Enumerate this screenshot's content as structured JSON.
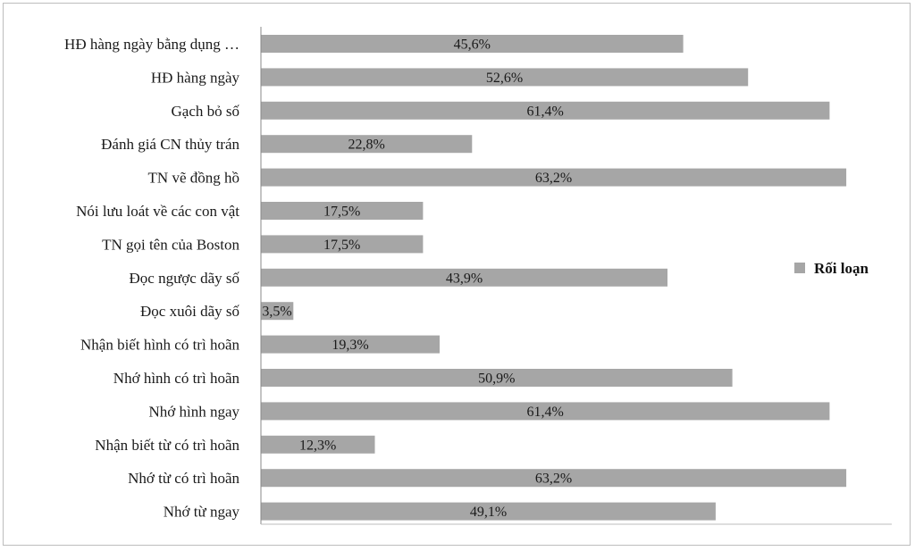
{
  "chart_data": {
    "type": "bar",
    "orientation": "horizontal",
    "categories": [
      "HĐ hàng ngày bằng dụng …",
      "HĐ hàng ngày",
      "Gạch bỏ số",
      "Đánh giá CN thủy trán",
      "TN vẽ đồng hồ",
      "Nói lưu loát về các con vật",
      "TN gọi tên của Boston",
      "Đọc ngược dãy số",
      "Đọc xuôi dãy số",
      "Nhận biết hình có trì hoãn",
      "Nhớ hình có trì hoãn",
      "Nhớ hình ngay",
      "Nhận biết từ có trì hoãn",
      "Nhớ từ có trì hoãn",
      "Nhớ từ ngay"
    ],
    "series": [
      {
        "name": "Rối loạn",
        "values": [
          45.6,
          52.6,
          61.4,
          22.8,
          63.2,
          17.5,
          17.5,
          43.9,
          3.5,
          19.3,
          50.9,
          61.4,
          12.3,
          63.2,
          49.1
        ],
        "labels": [
          "45,6%",
          "52,6%",
          "61,4%",
          "22,8%",
          "63,2%",
          "17,5%",
          "17,5%",
          "43,9%",
          "3,5%",
          "19,3%",
          "50,9%",
          "61,4%",
          "12,3%",
          "63,2%",
          "49,1%"
        ]
      }
    ],
    "xlim": [
      0,
      68
    ],
    "grid": false,
    "legend": "right",
    "bar_color": "#a6a6a6",
    "axis_color": "#888888"
  }
}
